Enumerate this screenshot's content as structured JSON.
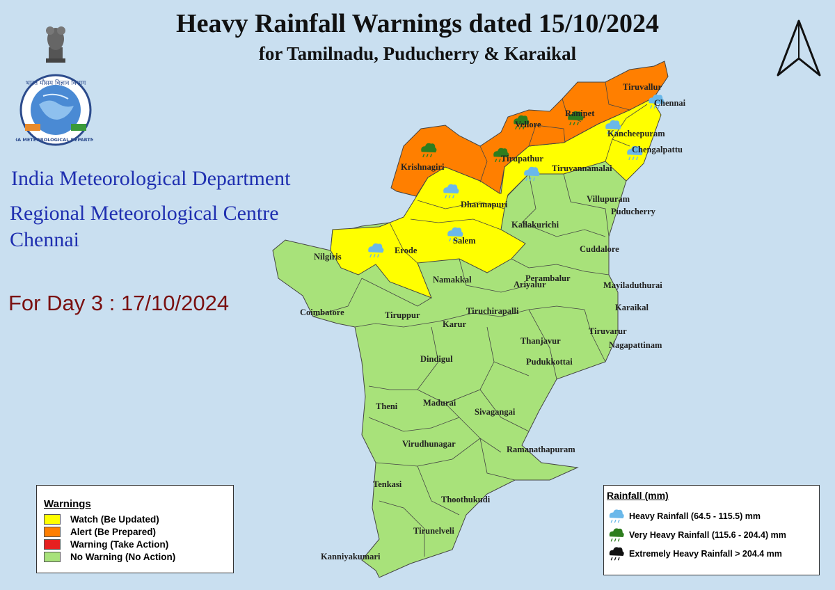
{
  "title_line1": "Heavy Rainfall Warnings dated 15/10/2024",
  "title_line2": "for Tamilnadu, Puducherry & Karaikal",
  "org_line1": "India Meteorological Department",
  "org_line2": "Regional Meteorological Centre",
  "org_line3": "Chennai",
  "day_label": "For Day 3 : 17/10/2024",
  "logo_text": {
    "hindi_top": "भारत मौसम विज्ञान विभाग",
    "english_ring": "INDIA METEOROLOGICAL DEPARTMENT"
  },
  "colors": {
    "sea": "#c9dff0",
    "watch": "#ffff00",
    "alert": "#ff7f00",
    "warning": "#e62020",
    "no_warning": "#a8e27a",
    "heavy_icon": "#6ab8ea",
    "very_heavy_icon": "#2e7d1e",
    "extreme_icon": "#111111"
  },
  "warnings_legend": {
    "title": "Warnings",
    "items": [
      {
        "label": "Watch (Be Updated)",
        "color": "#ffff00"
      },
      {
        "label": "Alert (Be Prepared)",
        "color": "#ff7f00"
      },
      {
        "label": "Warning (Take Action)",
        "color": "#e62020"
      },
      {
        "label": "No Warning (No Action)",
        "color": "#a8e27a"
      }
    ]
  },
  "rainfall_legend": {
    "title": "Rainfall (mm)",
    "items": [
      {
        "label": "Heavy Rainfall (64.5 - 115.5) mm",
        "icon": "light-blue-rain-cloud-icon"
      },
      {
        "label": "Very Heavy Rainfall (115.6 - 204.4) mm",
        "icon": "green-rain-cloud-icon"
      },
      {
        "label": "Extremely Heavy Rainfall > 204.4 mm",
        "icon": "black-rain-cloud-icon"
      }
    ]
  },
  "districts": {
    "alert": [
      "Tiruvallur",
      "Ranipet",
      "Vellore",
      "Tirupathur",
      "Krishnagiri"
    ],
    "watch": [
      "Chennai",
      "Kancheepuram",
      "Chengalpattu",
      "Tiruvannamalai",
      "Dharmapuri",
      "Salem",
      "Erode"
    ],
    "no_warning": [
      "Villupuram",
      "Puducherry",
      "Kallakurichi",
      "Cuddalore",
      "Nilgiris",
      "Namakkal",
      "Perambalur",
      "Ariyalur",
      "Mayiladuthurai",
      "Karaikal",
      "Coimbatore",
      "Tiruppur",
      "Karur",
      "Tiruchirapalli",
      "Tiruvarur",
      "Nagapattinam",
      "Thanjavur",
      "Dindigul",
      "Pudukkottai",
      "Theni",
      "Madurai",
      "Sivagangai",
      "Virudhunagar",
      "Ramanathapuram",
      "Tenkasi",
      "Thoothukudi",
      "Tirunelveli",
      "Kanniyakumari"
    ]
  },
  "rain_icons": {
    "very_heavy": [
      "Krishnagiri",
      "Vellore",
      "Ranipet",
      "Tirupathur"
    ],
    "heavy": [
      "Chennai",
      "Kancheepuram",
      "Chengalpattu",
      "Tiruvannamalai",
      "Dharmapuri",
      "Salem",
      "Erode"
    ]
  }
}
